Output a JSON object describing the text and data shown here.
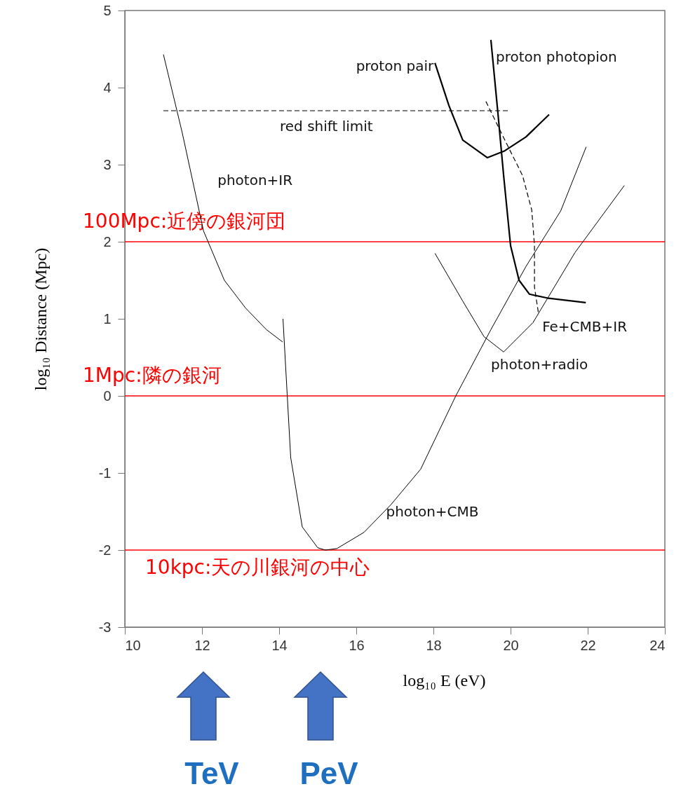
{
  "chart_data": {
    "type": "line",
    "xlabel": "log₁₀ E (eV)",
    "ylabel": "log₁₀ Distance (Mpc)",
    "xlim": [
      10,
      24
    ],
    "xticks": [
      10,
      12,
      14,
      16,
      18,
      20,
      22,
      24
    ],
    "ylim": [
      -3,
      5
    ],
    "yticks": [
      -3,
      -2,
      -1,
      0,
      1,
      2,
      3,
      4,
      5
    ],
    "grid": false,
    "marker": "none",
    "line_style": "solid",
    "series": [
      {
        "name": "photon+IR",
        "color": "#000000",
        "x": [
          11.0,
          11.49,
          12.04,
          12.58,
          13.13,
          13.67,
          14.09
        ],
        "values": [
          4.43,
          3.41,
          2.14,
          1.5,
          1.14,
          0.86,
          0.7
        ]
      },
      {
        "name": "photon+CMB",
        "color": "#000000",
        "x": [
          14.1,
          14.3,
          14.6,
          15.0,
          15.2,
          15.5,
          16.2,
          16.9,
          17.67,
          18.58,
          19.49,
          20.4,
          21.3,
          21.96
        ],
        "values": [
          1.0,
          -0.8,
          -1.7,
          -1.97,
          -2.0,
          -1.98,
          -1.77,
          -1.41,
          -0.95,
          0.0,
          0.86,
          1.68,
          2.4,
          3.23
        ]
      },
      {
        "name": "photon+radio",
        "color": "#000000",
        "x": [
          18.04,
          18.76,
          19.31,
          19.82,
          20.58,
          21.67,
          22.95
        ],
        "values": [
          1.85,
          1.23,
          0.77,
          0.57,
          0.95,
          1.86,
          2.73
        ]
      },
      {
        "name": "proton pair",
        "color": "#000000",
        "x": [
          18.04,
          18.4,
          18.76,
          19.4,
          19.85,
          20.4,
          21.0
        ],
        "values": [
          4.32,
          3.77,
          3.32,
          3.09,
          3.18,
          3.36,
          3.65
        ]
      },
      {
        "name": "proton photopion",
        "color": "#000000",
        "x": [
          19.49,
          19.67,
          19.82,
          20.0,
          20.22,
          20.49,
          20.95,
          21.95
        ],
        "values": [
          4.62,
          3.68,
          2.86,
          1.95,
          1.5,
          1.32,
          1.27,
          1.21
        ]
      },
      {
        "name": "Fe+CMB+IR",
        "color": "#000000",
        "line_style": "dashed",
        "x": [
          19.36,
          19.85,
          20.31,
          20.55,
          20.62,
          20.62,
          20.73
        ],
        "values": [
          3.82,
          3.32,
          2.86,
          2.41,
          1.95,
          1.41,
          1.05
        ]
      },
      {
        "name": "red shift limit",
        "color": "#000000",
        "line_style": "dashed",
        "x": [
          11.0,
          20.0
        ],
        "values": [
          3.7,
          3.7
        ]
      }
    ],
    "ref_lines": [
      {
        "axis": "y",
        "value": 2,
        "label": "100Mpc:近傍の銀河団",
        "color": "#ff0000"
      },
      {
        "axis": "y",
        "value": 0,
        "label": "1Mpc:隣の銀河",
        "color": "#ff0000"
      },
      {
        "axis": "y",
        "value": -2,
        "label": "10kpc:天の川銀河の中心",
        "color": "#ff0000"
      }
    ],
    "annotations": [
      "TeV",
      "PeV"
    ]
  }
}
